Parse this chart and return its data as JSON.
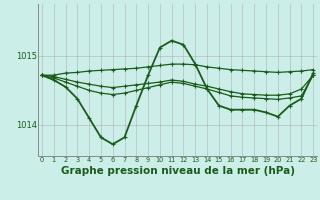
{
  "background_color": "#cceee8",
  "grid_color": "#aaaaaa",
  "line_color": "#1a5c1a",
  "xlabel": "Graphe pression niveau de la mer (hPa)",
  "xlabel_fontsize": 7.5,
  "ylabel_ticks": [
    1014,
    1015
  ],
  "xlim": [
    -0.3,
    23.3
  ],
  "ylim": [
    1013.55,
    1015.75
  ],
  "xtick_labels": [
    "0",
    "1",
    "2",
    "3",
    "4",
    "5",
    "6",
    "7",
    "8",
    "9",
    "10",
    "11",
    "12",
    "13",
    "14",
    "15",
    "16",
    "17",
    "18",
    "19",
    "20",
    "21",
    "22",
    "23"
  ],
  "series": [
    {
      "x": [
        0,
        1,
        2,
        3,
        4,
        5,
        6,
        7,
        8,
        9,
        10,
        11,
        12,
        13,
        14,
        15,
        16,
        17,
        18,
        19,
        20,
        21,
        22,
        23
      ],
      "y": [
        1014.72,
        1014.72,
        1014.75,
        1014.76,
        1014.78,
        1014.79,
        1014.8,
        1014.81,
        1014.82,
        1014.84,
        1014.86,
        1014.88,
        1014.88,
        1014.87,
        1014.84,
        1014.82,
        1014.8,
        1014.79,
        1014.78,
        1014.77,
        1014.76,
        1014.77,
        1014.78,
        1014.8
      ],
      "lw": 0.9
    },
    {
      "x": [
        0,
        1,
        2,
        3,
        4,
        5,
        6,
        7,
        8,
        9,
        10,
        11,
        12,
        13,
        14,
        15,
        16,
        17,
        18,
        19,
        20,
        21,
        22,
        23
      ],
      "y": [
        1014.72,
        1014.65,
        1014.55,
        1014.38,
        1014.1,
        1013.82,
        1013.72,
        1013.82,
        1014.28,
        1014.72,
        1015.12,
        1015.22,
        1015.16,
        1014.88,
        1014.52,
        1014.28,
        1014.22,
        1014.22,
        1014.22,
        1014.18,
        1014.12,
        1014.28,
        1014.38,
        1014.75
      ],
      "lw": 1.3
    },
    {
      "x": [
        0,
        1,
        2,
        3,
        4,
        5,
        6,
        7,
        8,
        9,
        10,
        11,
        12,
        13,
        14,
        15,
        16,
        17,
        18,
        19,
        20,
        21,
        22,
        23
      ],
      "y": [
        1014.72,
        1014.68,
        1014.62,
        1014.56,
        1014.5,
        1014.46,
        1014.44,
        1014.46,
        1014.5,
        1014.54,
        1014.58,
        1014.62,
        1014.6,
        1014.56,
        1014.52,
        1014.47,
        1014.42,
        1014.4,
        1014.39,
        1014.38,
        1014.37,
        1014.39,
        1014.42,
        1014.72
      ],
      "lw": 0.9
    },
    {
      "x": [
        0,
        1,
        2,
        3,
        4,
        5,
        6,
        7,
        8,
        9,
        10,
        11,
        12,
        13,
        14,
        15,
        16,
        17,
        18,
        19,
        20,
        21,
        22,
        23
      ],
      "y": [
        1014.72,
        1014.7,
        1014.66,
        1014.62,
        1014.59,
        1014.56,
        1014.54,
        1014.56,
        1014.58,
        1014.6,
        1014.62,
        1014.65,
        1014.63,
        1014.59,
        1014.56,
        1014.52,
        1014.48,
        1014.45,
        1014.44,
        1014.43,
        1014.43,
        1014.45,
        1014.52,
        1014.72
      ],
      "lw": 0.9
    }
  ]
}
